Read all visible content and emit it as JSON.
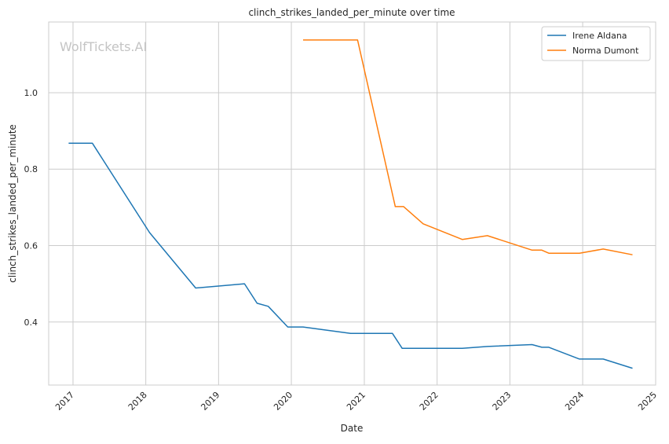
{
  "chart_data": {
    "type": "line",
    "title": "clinch_strikes_landed_per_minute over time",
    "xlabel": "Date",
    "ylabel": "clinch_strikes_landed_per_minute",
    "watermark": "WolfTickets.AI",
    "x_ticks": [
      "2017",
      "2018",
      "2019",
      "2020",
      "2021",
      "2022",
      "2023",
      "2024",
      "2025"
    ],
    "y_ticks": [
      "0.4",
      "0.6",
      "0.8",
      "1.0"
    ],
    "xlim": [
      "2016-09-01",
      "2025-01-01"
    ],
    "ylim": [
      0.235,
      1.185
    ],
    "grid": true,
    "legend_position": "top-right",
    "series": [
      {
        "name": "Irene Aldana",
        "color": "#1f77b4",
        "points": [
          [
            "2016-12-10",
            0.868
          ],
          [
            "2017-04-08",
            0.868
          ],
          [
            "2018-01-20",
            0.634
          ],
          [
            "2018-09-08",
            0.489
          ],
          [
            "2019-05-11",
            0.5
          ],
          [
            "2019-07-13",
            0.449
          ],
          [
            "2019-09-07",
            0.441
          ],
          [
            "2019-12-14",
            0.387
          ],
          [
            "2020-02-29",
            0.387
          ],
          [
            "2020-10-24",
            0.37
          ],
          [
            "2021-05-22",
            0.37
          ],
          [
            "2021-07-10",
            0.331
          ],
          [
            "2022-05-07",
            0.331
          ],
          [
            "2022-09-10",
            0.336
          ],
          [
            "2023-04-22",
            0.341
          ],
          [
            "2023-06-10",
            0.334
          ],
          [
            "2023-07-15",
            0.334
          ],
          [
            "2023-12-16",
            0.303
          ],
          [
            "2024-04-13",
            0.303
          ],
          [
            "2024-09-07",
            0.279
          ]
        ]
      },
      {
        "name": "Norma Dumont",
        "color": "#ff7f0e",
        "points": [
          [
            "2020-02-29",
            1.138
          ],
          [
            "2020-11-28",
            1.138
          ],
          [
            "2021-06-05",
            0.702
          ],
          [
            "2021-07-17",
            0.702
          ],
          [
            "2021-10-23",
            0.657
          ],
          [
            "2022-05-07",
            0.616
          ],
          [
            "2022-09-10",
            0.626
          ],
          [
            "2023-04-22",
            0.588
          ],
          [
            "2023-06-10",
            0.588
          ],
          [
            "2023-07-15",
            0.58
          ],
          [
            "2023-12-16",
            0.58
          ],
          [
            "2024-04-13",
            0.591
          ],
          [
            "2024-09-07",
            0.576
          ]
        ]
      }
    ]
  }
}
